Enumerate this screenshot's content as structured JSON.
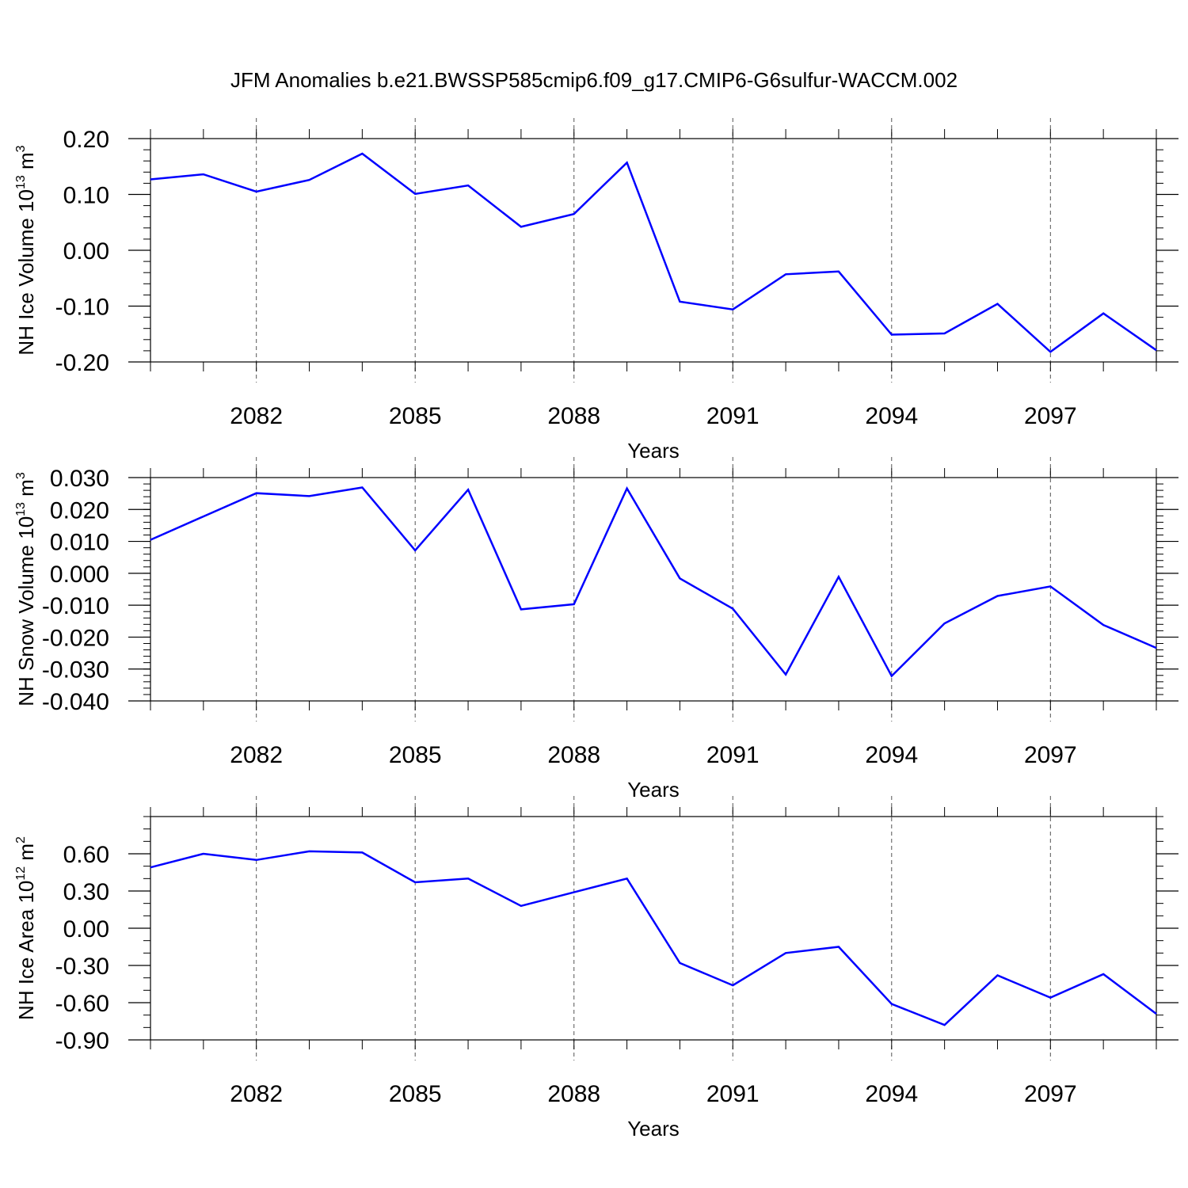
{
  "title": "JFM Anomalies b.e21.BWSSP585cmip6.f09_g17.CMIP6-G6sulfur-WACCM.002",
  "colors": {
    "line": "#0000ff",
    "axis": "#000000",
    "grid": "#555555"
  },
  "chart_data": [
    {
      "type": "line",
      "ylabel": {
        "text": "NH Ice Volume 10",
        "sup": "13",
        "unit": " m",
        "unit_sup": "3"
      },
      "xlabel": "Years",
      "xlim": [
        2080,
        2099
      ],
      "xticks": [
        2082,
        2085,
        2088,
        2091,
        2094,
        2097
      ],
      "xtick_labels": [
        "2082",
        "2085",
        "2088",
        "2091",
        "2094",
        "2097"
      ],
      "ylim": [
        -0.2,
        0.2
      ],
      "yticks": [
        0.2,
        0.1,
        0.0,
        -0.1,
        -0.2
      ],
      "ytick_labels": [
        "0.20",
        "0.10",
        "0.00",
        "-0.10",
        "-0.20"
      ],
      "yminor_step": 0.02,
      "grid": "vertical dashed at major x ticks",
      "x": [
        2080,
        2081,
        2082,
        2083,
        2084,
        2085,
        2086,
        2087,
        2088,
        2089,
        2090,
        2091,
        2092,
        2093,
        2094,
        2095,
        2096,
        2097,
        2098,
        2099
      ],
      "values": [
        0.127,
        0.136,
        0.105,
        0.126,
        0.173,
        0.101,
        0.116,
        0.042,
        0.065,
        0.157,
        -0.092,
        -0.106,
        -0.043,
        -0.038,
        -0.151,
        -0.149,
        -0.096,
        -0.182,
        -0.113,
        -0.179
      ]
    },
    {
      "type": "line",
      "ylabel": {
        "text": "NH Snow Volume 10",
        "sup": "13",
        "unit": " m",
        "unit_sup": "3"
      },
      "xlabel": "Years",
      "xlim": [
        2080,
        2099
      ],
      "xticks": [
        2082,
        2085,
        2088,
        2091,
        2094,
        2097
      ],
      "xtick_labels": [
        "2082",
        "2085",
        "2088",
        "2091",
        "2094",
        "2097"
      ],
      "ylim": [
        -0.04,
        0.03
      ],
      "yticks": [
        0.03,
        0.02,
        0.01,
        0.0,
        -0.01,
        -0.02,
        -0.03,
        -0.04
      ],
      "ytick_labels": [
        "0.030",
        "0.020",
        "0.010",
        "0.000",
        "-0.010",
        "-0.020",
        "-0.030",
        "-0.040"
      ],
      "yminor_step": 0.002,
      "grid": "vertical dashed at major x ticks",
      "x": [
        2080,
        2081,
        2082,
        2083,
        2084,
        2085,
        2086,
        2087,
        2088,
        2089,
        2090,
        2091,
        2092,
        2093,
        2094,
        2095,
        2096,
        2097,
        2098,
        2099
      ],
      "values": [
        0.0105,
        0.0178,
        0.0251,
        0.0242,
        0.0269,
        0.0072,
        0.0262,
        -0.0113,
        -0.0097,
        0.0266,
        -0.0016,
        -0.0111,
        -0.0317,
        -0.0011,
        -0.0322,
        -0.0157,
        -0.0071,
        -0.0041,
        -0.0162,
        -0.0234
      ]
    },
    {
      "type": "line",
      "ylabel": {
        "text": "NH Ice Area 10",
        "sup": "12",
        "unit": " m",
        "unit_sup": "2"
      },
      "xlabel": "Years",
      "xlim": [
        2080,
        2099
      ],
      "xticks": [
        2082,
        2085,
        2088,
        2091,
        2094,
        2097
      ],
      "xtick_labels": [
        "2082",
        "2085",
        "2088",
        "2091",
        "2094",
        "2097"
      ],
      "ylim": [
        -0.9,
        0.9
      ],
      "yticks": [
        0.6,
        0.3,
        0.0,
        -0.3,
        -0.6,
        -0.9
      ],
      "ytick_labels": [
        "0.60",
        "0.30",
        "0.00",
        "-0.30",
        "-0.60",
        "-0.90"
      ],
      "yminor_step": 0.1,
      "grid": "vertical dashed at major x ticks",
      "x": [
        2080,
        2081,
        2082,
        2083,
        2084,
        2085,
        2086,
        2087,
        2088,
        2089,
        2090,
        2091,
        2092,
        2093,
        2094,
        2095,
        2096,
        2097,
        2098,
        2099
      ],
      "values": [
        0.49,
        0.6,
        0.55,
        0.62,
        0.61,
        0.37,
        0.4,
        0.18,
        0.29,
        0.4,
        -0.28,
        -0.46,
        -0.2,
        -0.15,
        -0.61,
        -0.78,
        -0.38,
        -0.56,
        -0.37,
        -0.69
      ]
    }
  ]
}
